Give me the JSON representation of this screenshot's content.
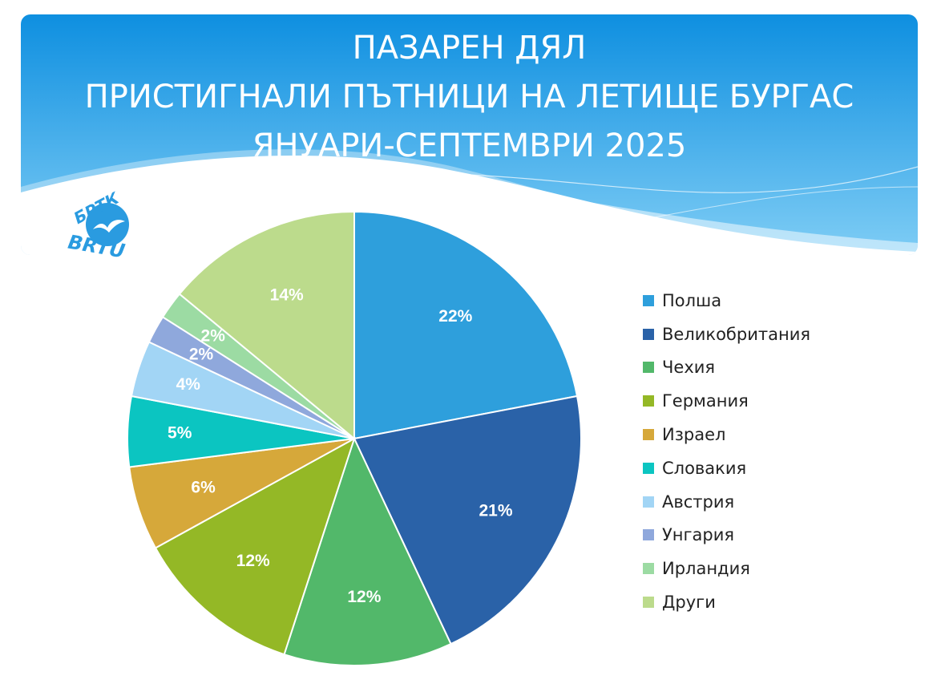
{
  "title": {
    "line1": "ПАЗАРЕН ДЯЛ",
    "line2": "ПРИСТИГНАЛИ ПЪТНИЦИ НА ЛЕТИЩЕ БУРГАС",
    "line3": "ЯНУАРИ-СЕПТЕМВРИ 2025"
  },
  "logo": {
    "top_text": "БРТК",
    "bottom_text": "BRTU"
  },
  "colors": {
    "banner_top": "#0e8fe0",
    "banner_bottom": "#7fcdf5",
    "label_text": "#ffffff"
  },
  "chart_data": {
    "type": "pie",
    "title": "ПАЗАРЕН ДЯЛ ПРИСТИГНАЛИ ПЪТНИЦИ НА ЛЕТИЩЕ БУРГАС ЯНУАРИ-СЕПТЕМВРИ 2025",
    "legend_position": "right",
    "slices": [
      {
        "label": "Полша",
        "value": 22,
        "display": "22%",
        "color": "#2e9fdc"
      },
      {
        "label": "Великобритания",
        "value": 21,
        "display": "21%",
        "color": "#2a62a8"
      },
      {
        "label": "Чехия",
        "value": 12,
        "display": "12%",
        "color": "#52b86a"
      },
      {
        "label": "Германия",
        "value": 12,
        "display": "12%",
        "color": "#94b826"
      },
      {
        "label": "Израел",
        "value": 6,
        "display": "6%",
        "color": "#d6a83a"
      },
      {
        "label": "Словакия",
        "value": 5,
        "display": "5%",
        "color": "#0bc5c1"
      },
      {
        "label": "Австрия",
        "value": 4,
        "display": "4%",
        "color": "#a2d5f5"
      },
      {
        "label": "Унгария",
        "value": 2,
        "display": "2%",
        "color": "#8fa8dc"
      },
      {
        "label": "Ирландия",
        "value": 2,
        "display": "2%",
        "color": "#9cdba3"
      },
      {
        "label": "Други",
        "value": 14,
        "display": "14%",
        "color": "#bcdb8c"
      }
    ]
  }
}
